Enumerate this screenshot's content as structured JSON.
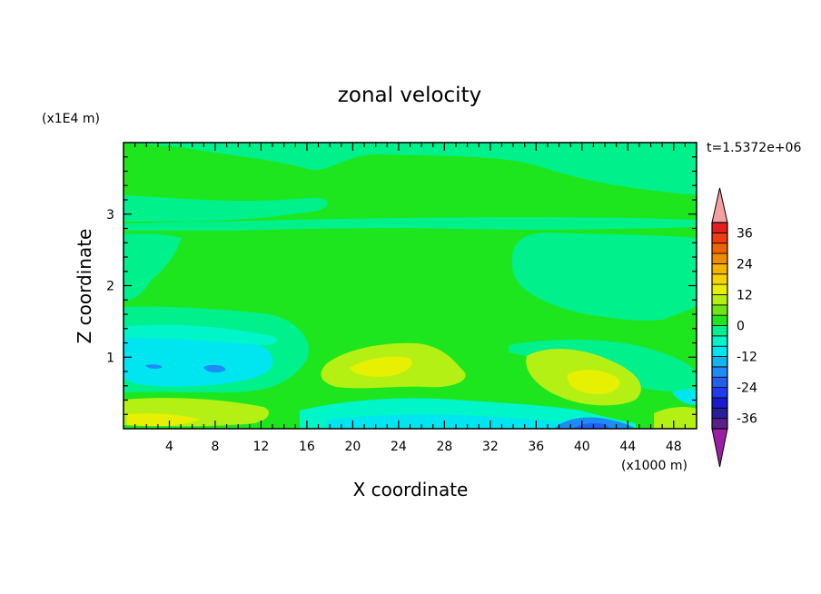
{
  "chart_data": {
    "type": "heatmap",
    "title": "zonal velocity",
    "xlabel": "X coordinate",
    "ylabel": "Z coordinate",
    "x_units": "(x1000 m)",
    "y_units": "(x1E4 m)",
    "time_label": "t=1.5372e+06",
    "xlim": [
      0,
      50
    ],
    "ylim": [
      0,
      4
    ],
    "x_ticks": [
      4,
      8,
      12,
      16,
      20,
      24,
      28,
      32,
      36,
      40,
      44,
      48
    ],
    "y_ticks": [
      1,
      2,
      3
    ],
    "colorbar": {
      "levels": [
        -40,
        -36,
        -32,
        -28,
        -24,
        -20,
        -16,
        -12,
        -8,
        -4,
        0,
        4,
        8,
        12,
        16,
        20,
        24,
        28,
        32,
        36,
        40
      ],
      "colors": [
        "#5a1f8c",
        "#2a1ea0",
        "#1a1ad0",
        "#1e3cf0",
        "#2060f5",
        "#1e8cf5",
        "#14b4f0",
        "#00e6f0",
        "#00f5c8",
        "#00f08c",
        "#1ee61e",
        "#6ee614",
        "#b4f014",
        "#e6f000",
        "#f5d200",
        "#f5b400",
        "#f08c00",
        "#f06400",
        "#f03c14",
        "#e61e1e"
      ],
      "tick_labels": [
        "36",
        "24",
        "12",
        "0",
        "-12",
        "-24",
        "-36"
      ],
      "tick_values": [
        36,
        24,
        12,
        0,
        -12,
        -24,
        -36
      ],
      "under_color": "#9a1fa6",
      "over_color": "#f5a0a0"
    },
    "field_colors": {
      "light_green": "#00f08c",
      "green": "#1ee61e",
      "yellow_green": "#b4f014",
      "bright_yellow": "#e6f000",
      "cyan": "#00e6f0",
      "aqua": "#00f5c8",
      "blue": "#1e8cf5",
      "dark_blue": "#2060f5"
    }
  }
}
